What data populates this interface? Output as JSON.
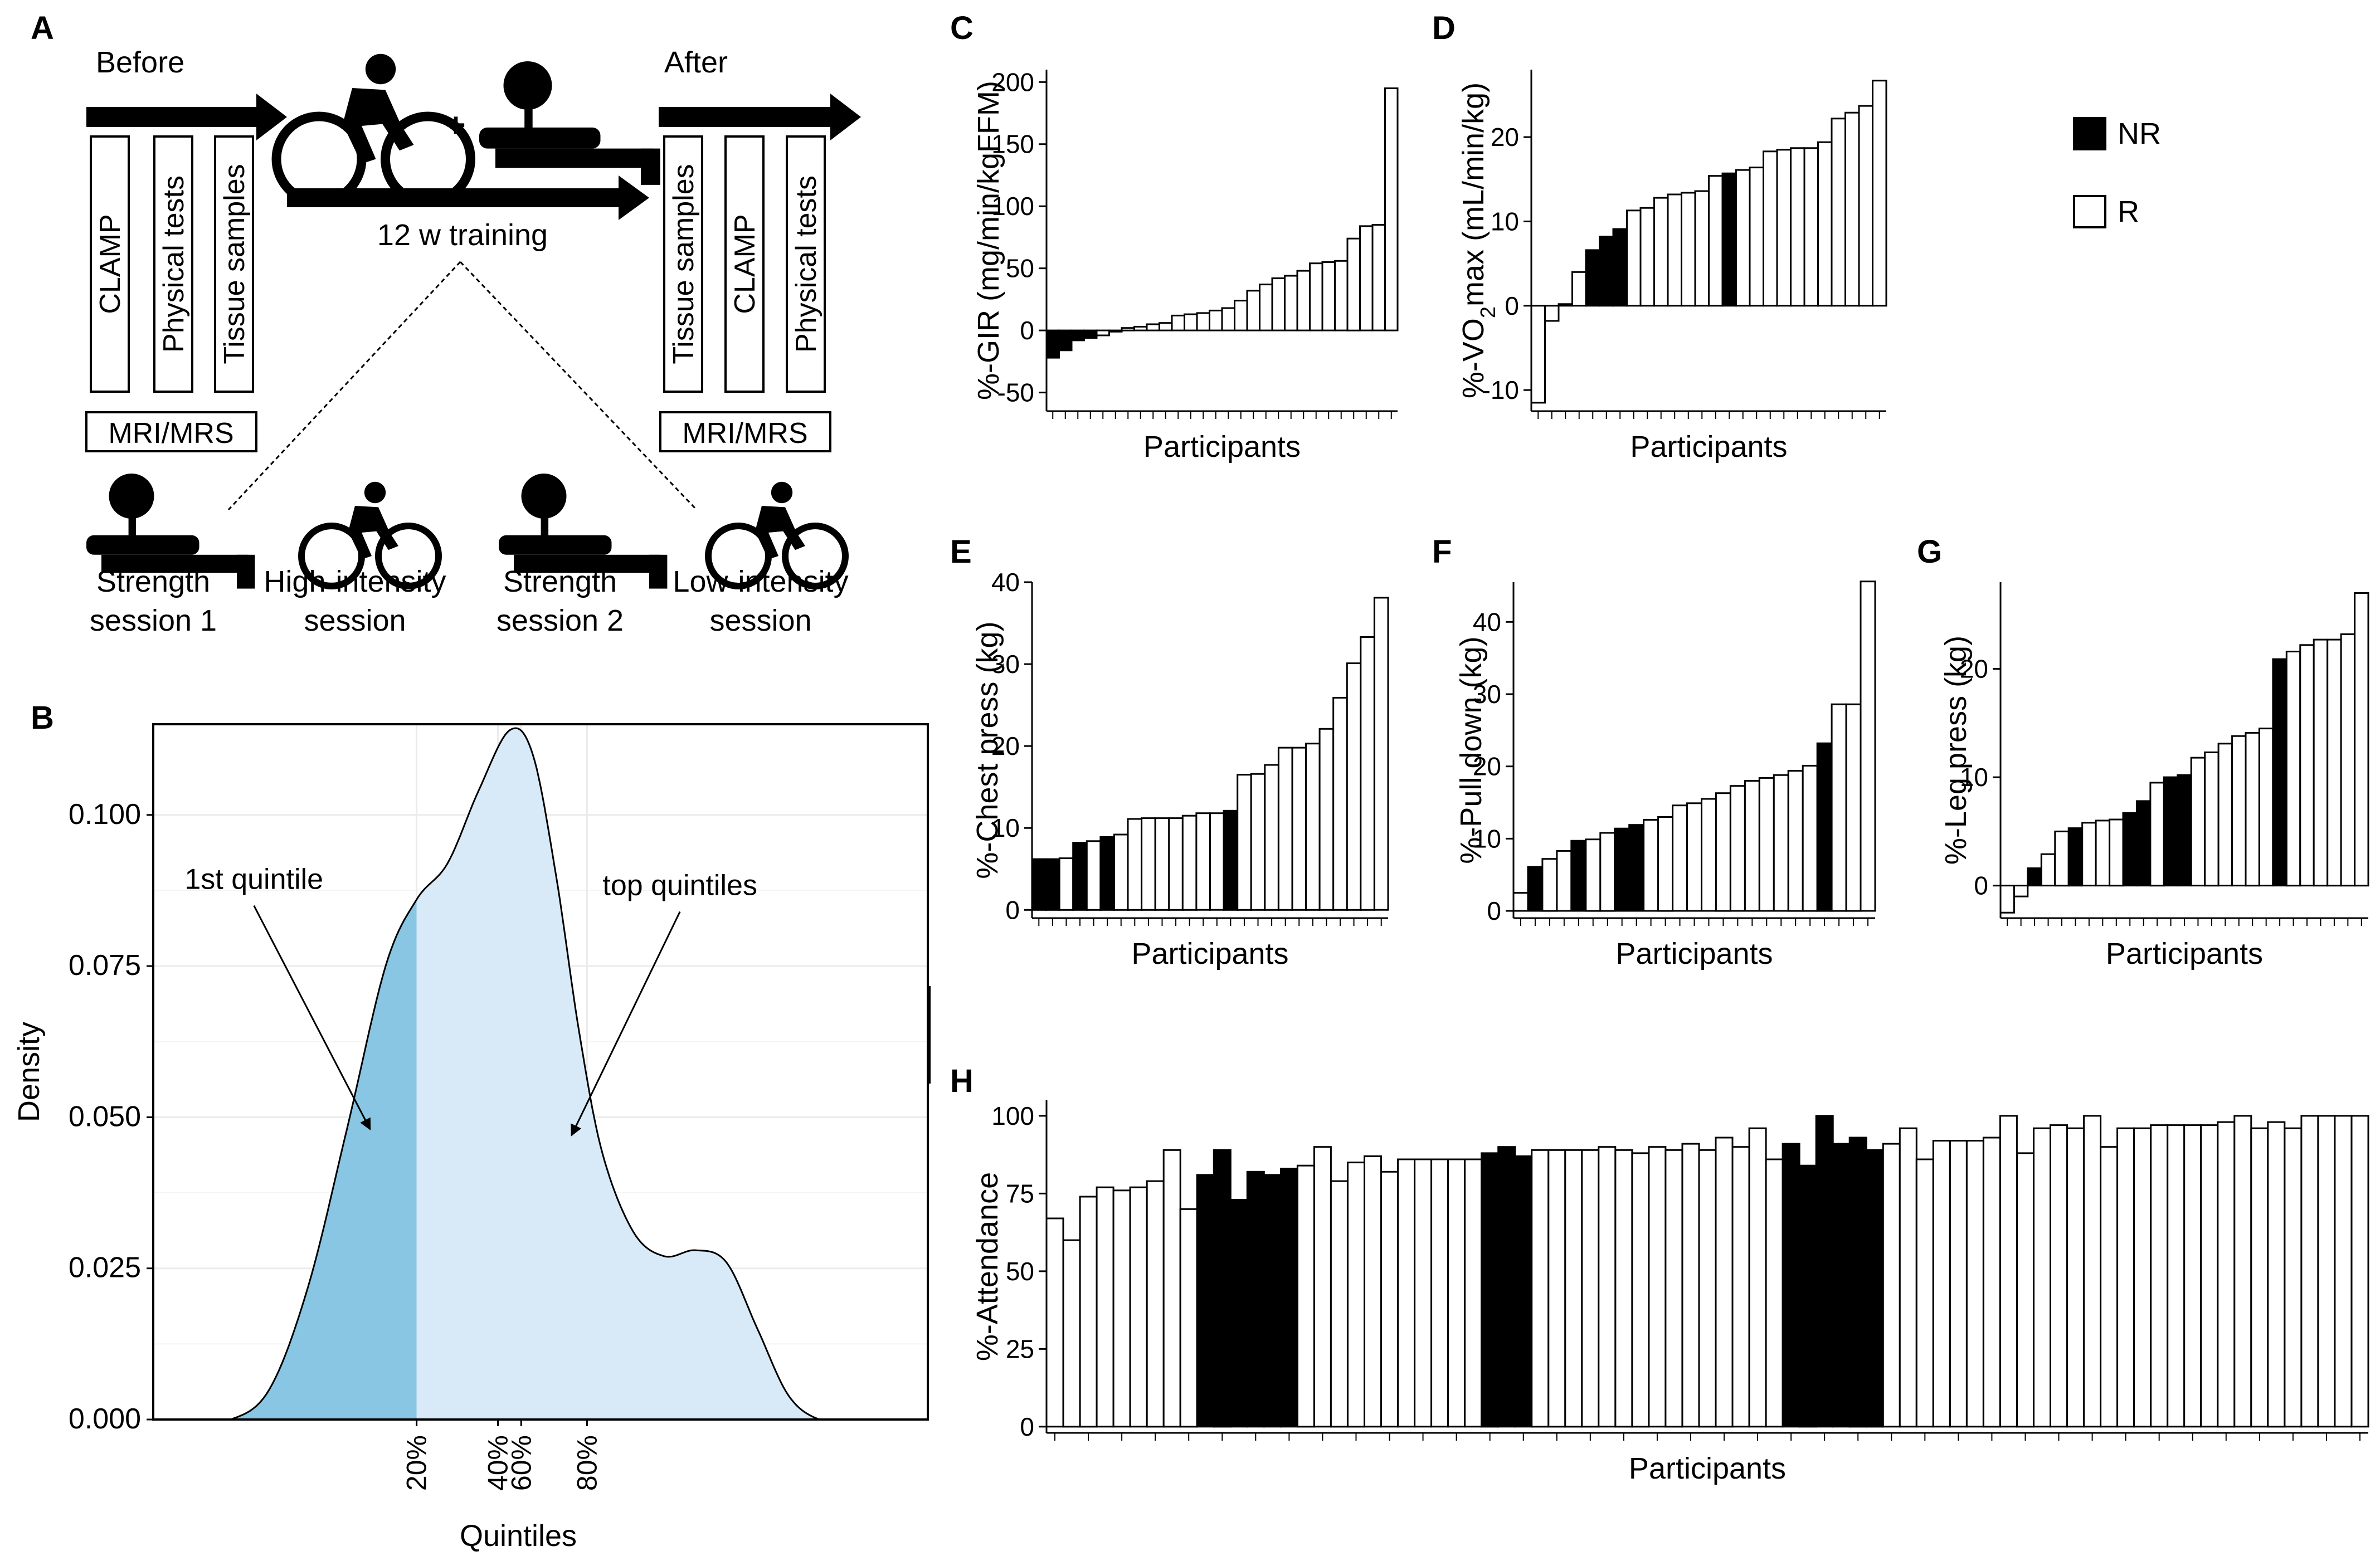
{
  "panel_a": {
    "label": "A",
    "before_label": "Before",
    "after_label": "After",
    "training_label": "12 w training",
    "plus_sign": "+",
    "before_boxes": [
      "CLAMP",
      "Physical tests",
      "Tissue samples"
    ],
    "after_boxes": [
      "Tissue samples",
      "CLAMP",
      "Physical tests"
    ],
    "mri_label": "MRI/MRS",
    "sessions": [
      {
        "line1": "Strength",
        "line2": "session 1",
        "icon": "strength-icon"
      },
      {
        "line1": "High-intensity",
        "line2": "session",
        "icon": "bicycle-icon"
      },
      {
        "line1": "Strength",
        "line2": "session 2",
        "icon": "strength-icon"
      },
      {
        "line1": "Low-intensity",
        "line2": "session",
        "icon": "bicycle-icon"
      }
    ]
  },
  "legend": {
    "nr": "NR",
    "r": "R"
  },
  "colors": {
    "nr_fill": "#000000",
    "r_fill": "#ffffff",
    "dark_blue": "#88c6e3",
    "light_blue": "#d8e9f7"
  },
  "chart_data": [
    {
      "panel": "B",
      "type": "area",
      "title": "",
      "xlabel": "Quintiles",
      "ylabel": "Density",
      "xlim": [
        0,
        1
      ],
      "ylim": [
        0,
        0.115
      ],
      "y_ticks": [
        "0.000",
        "0.025",
        "0.050",
        "0.075",
        "0.100"
      ],
      "x_tick_values": [
        0.34,
        0.445,
        0.475,
        0.56
      ],
      "x_tick_labels": [
        "20%",
        "40%",
        "60%",
        "80%"
      ],
      "x": [
        0.0,
        0.05,
        0.1,
        0.15,
        0.2,
        0.25,
        0.3,
        0.34,
        0.38,
        0.42,
        0.46,
        0.49,
        0.52,
        0.55,
        0.58,
        0.62,
        0.66,
        0.7,
        0.74,
        0.78,
        0.82,
        0.86,
        0.9,
        0.95,
        1.0
      ],
      "density": [
        0.0,
        0.0,
        0.0,
        0.005,
        0.022,
        0.048,
        0.075,
        0.086,
        0.092,
        0.104,
        0.114,
        0.11,
        0.09,
        0.064,
        0.044,
        0.031,
        0.027,
        0.028,
        0.026,
        0.015,
        0.004,
        0.0,
        0.0,
        0.0,
        0.0
      ],
      "split_at": 0.34,
      "annotations": [
        {
          "text": "1st quintile",
          "from": [
            0.13,
            0.085
          ],
          "to": [
            0.28,
            0.048
          ]
        },
        {
          "text": "top quintiles",
          "from": [
            0.68,
            0.084
          ],
          "to": [
            0.54,
            0.047
          ]
        }
      ]
    },
    {
      "panel": "C",
      "type": "bar",
      "ylabel": "%-GIR (mg/min/kgFFM)",
      "xlabel": "Participants",
      "ylim": [
        -65,
        210
      ],
      "yticks": [
        -50,
        0,
        50,
        100,
        150,
        200
      ],
      "values": [
        -22,
        -16,
        -8,
        -6,
        -4,
        -1,
        2,
        3,
        5,
        6,
        12,
        13,
        14,
        16,
        18,
        24,
        32,
        37,
        42,
        44,
        48,
        54,
        55,
        56,
        74,
        84,
        85,
        195
      ],
      "nr": [
        true,
        true,
        true,
        true,
        false,
        false,
        false,
        false,
        false,
        false,
        false,
        false,
        false,
        false,
        false,
        false,
        false,
        false,
        false,
        false,
        false,
        false,
        false,
        false,
        false,
        false,
        false,
        false
      ]
    },
    {
      "panel": "D",
      "type": "bar",
      "ylabel": "%-VO2max (mL/min/kg)",
      "ylabel_main": "%-VO",
      "ylabel_sub": "2",
      "ylabel_rest": "max (mL/min/kg)",
      "xlabel": "Participants",
      "ylim": [
        -12.5,
        28
      ],
      "yticks": [
        -10,
        0,
        10,
        20
      ],
      "values": [
        -11.5,
        -1.8,
        0.2,
        4,
        6.6,
        8.2,
        9.1,
        11.3,
        11.6,
        12.8,
        13.2,
        13.4,
        13.6,
        15.4,
        15.7,
        16.1,
        16.4,
        18.3,
        18.5,
        18.7,
        18.7,
        19.4,
        22.2,
        22.9,
        23.7,
        26.7
      ],
      "nr": [
        false,
        false,
        false,
        false,
        true,
        true,
        true,
        false,
        false,
        false,
        false,
        false,
        false,
        false,
        true,
        false,
        false,
        false,
        false,
        false,
        false,
        false,
        false,
        false,
        false,
        false
      ]
    },
    {
      "panel": "E",
      "type": "bar",
      "ylabel": "%-Chest press (kg)",
      "xlabel": "Participants",
      "ylim": [
        -1,
        40
      ],
      "yticks": [
        0,
        10,
        20,
        30,
        40
      ],
      "values": [
        6.2,
        6.2,
        6.3,
        8.2,
        8.4,
        8.9,
        9.2,
        11.1,
        11.2,
        11.2,
        11.2,
        11.5,
        11.8,
        11.8,
        12.1,
        16.5,
        16.6,
        17.7,
        19.8,
        19.8,
        20.3,
        22.1,
        25.9,
        30.1,
        33.3,
        38.1
      ],
      "nr": [
        true,
        true,
        false,
        true,
        false,
        true,
        false,
        false,
        false,
        false,
        false,
        false,
        false,
        false,
        true,
        false,
        false,
        false,
        false,
        false,
        false,
        false,
        false,
        false,
        false,
        false
      ]
    },
    {
      "panel": "F",
      "type": "bar",
      "ylabel": "%-Pull down (kg)",
      "xlabel": "Participants",
      "ylim": [
        -1,
        45.5
      ],
      "yticks": [
        0,
        10,
        20,
        30,
        40
      ],
      "values": [
        2.5,
        6.1,
        7.2,
        8.3,
        9.7,
        9.9,
        10.8,
        11.4,
        11.9,
        12.6,
        13,
        14.6,
        14.9,
        15.5,
        16.3,
        17.3,
        18,
        18.4,
        18.8,
        19.4,
        20.1,
        23.2,
        28.6,
        28.6,
        45.6
      ],
      "nr": [
        false,
        true,
        false,
        false,
        true,
        false,
        false,
        true,
        true,
        false,
        false,
        false,
        false,
        false,
        false,
        false,
        false,
        false,
        false,
        false,
        false,
        true,
        false,
        false,
        false
      ]
    },
    {
      "panel": "G",
      "type": "bar",
      "ylabel": "%-Leg press (kg)",
      "xlabel": "Participants",
      "ylim": [
        -3,
        28
      ],
      "yticks": [
        0,
        10,
        20
      ],
      "values": [
        -2.5,
        -1,
        1.6,
        2.9,
        5,
        5.3,
        5.8,
        6,
        6.1,
        6.7,
        7.8,
        9.5,
        10,
        10.2,
        11.8,
        12.3,
        13.1,
        13.8,
        14.1,
        14.5,
        20.9,
        21.6,
        22.2,
        22.7,
        22.7,
        23.2,
        27
      ],
      "nr": [
        false,
        false,
        true,
        false,
        false,
        true,
        false,
        false,
        false,
        true,
        true,
        false,
        true,
        true,
        false,
        false,
        false,
        false,
        false,
        false,
        true,
        false,
        false,
        false,
        false,
        false,
        false
      ]
    },
    {
      "panel": "H",
      "type": "bar",
      "ylabel": "%-Attendance",
      "xlabel": "Participants",
      "ylim": [
        -2,
        105
      ],
      "yticks": [
        0,
        25,
        50,
        75,
        100
      ],
      "values": [
        67,
        60,
        74,
        77,
        76,
        77,
        79,
        89,
        70,
        81,
        89,
        73,
        82,
        81,
        83,
        84,
        90,
        79,
        85,
        87,
        82,
        86,
        86,
        86,
        86,
        86,
        88,
        90,
        87,
        89,
        89,
        89,
        89,
        90,
        89,
        88,
        90,
        89,
        91,
        89,
        93,
        90,
        96,
        86,
        91,
        84,
        100,
        91,
        93,
        89,
        91,
        96,
        86,
        92,
        92,
        92,
        93,
        100,
        88,
        96,
        97,
        96,
        100,
        90,
        96,
        96,
        97,
        97,
        97,
        97,
        98,
        100,
        96,
        98,
        96,
        100,
        100,
        100,
        100
      ],
      "nr": [
        false,
        false,
        false,
        false,
        false,
        false,
        false,
        false,
        false,
        true,
        true,
        true,
        true,
        true,
        true,
        false,
        false,
        false,
        false,
        false,
        false,
        false,
        false,
        false,
        false,
        false,
        true,
        true,
        true,
        false,
        false,
        false,
        false,
        false,
        false,
        false,
        false,
        false,
        false,
        false,
        false,
        false,
        false,
        false,
        true,
        true,
        true,
        true,
        true,
        true,
        false,
        false,
        false,
        false,
        false,
        false,
        false,
        false,
        false,
        false,
        false,
        false,
        false,
        false,
        false,
        false,
        false,
        false,
        false,
        false,
        false,
        false,
        false,
        false,
        false,
        false,
        false,
        false,
        false
      ]
    }
  ]
}
